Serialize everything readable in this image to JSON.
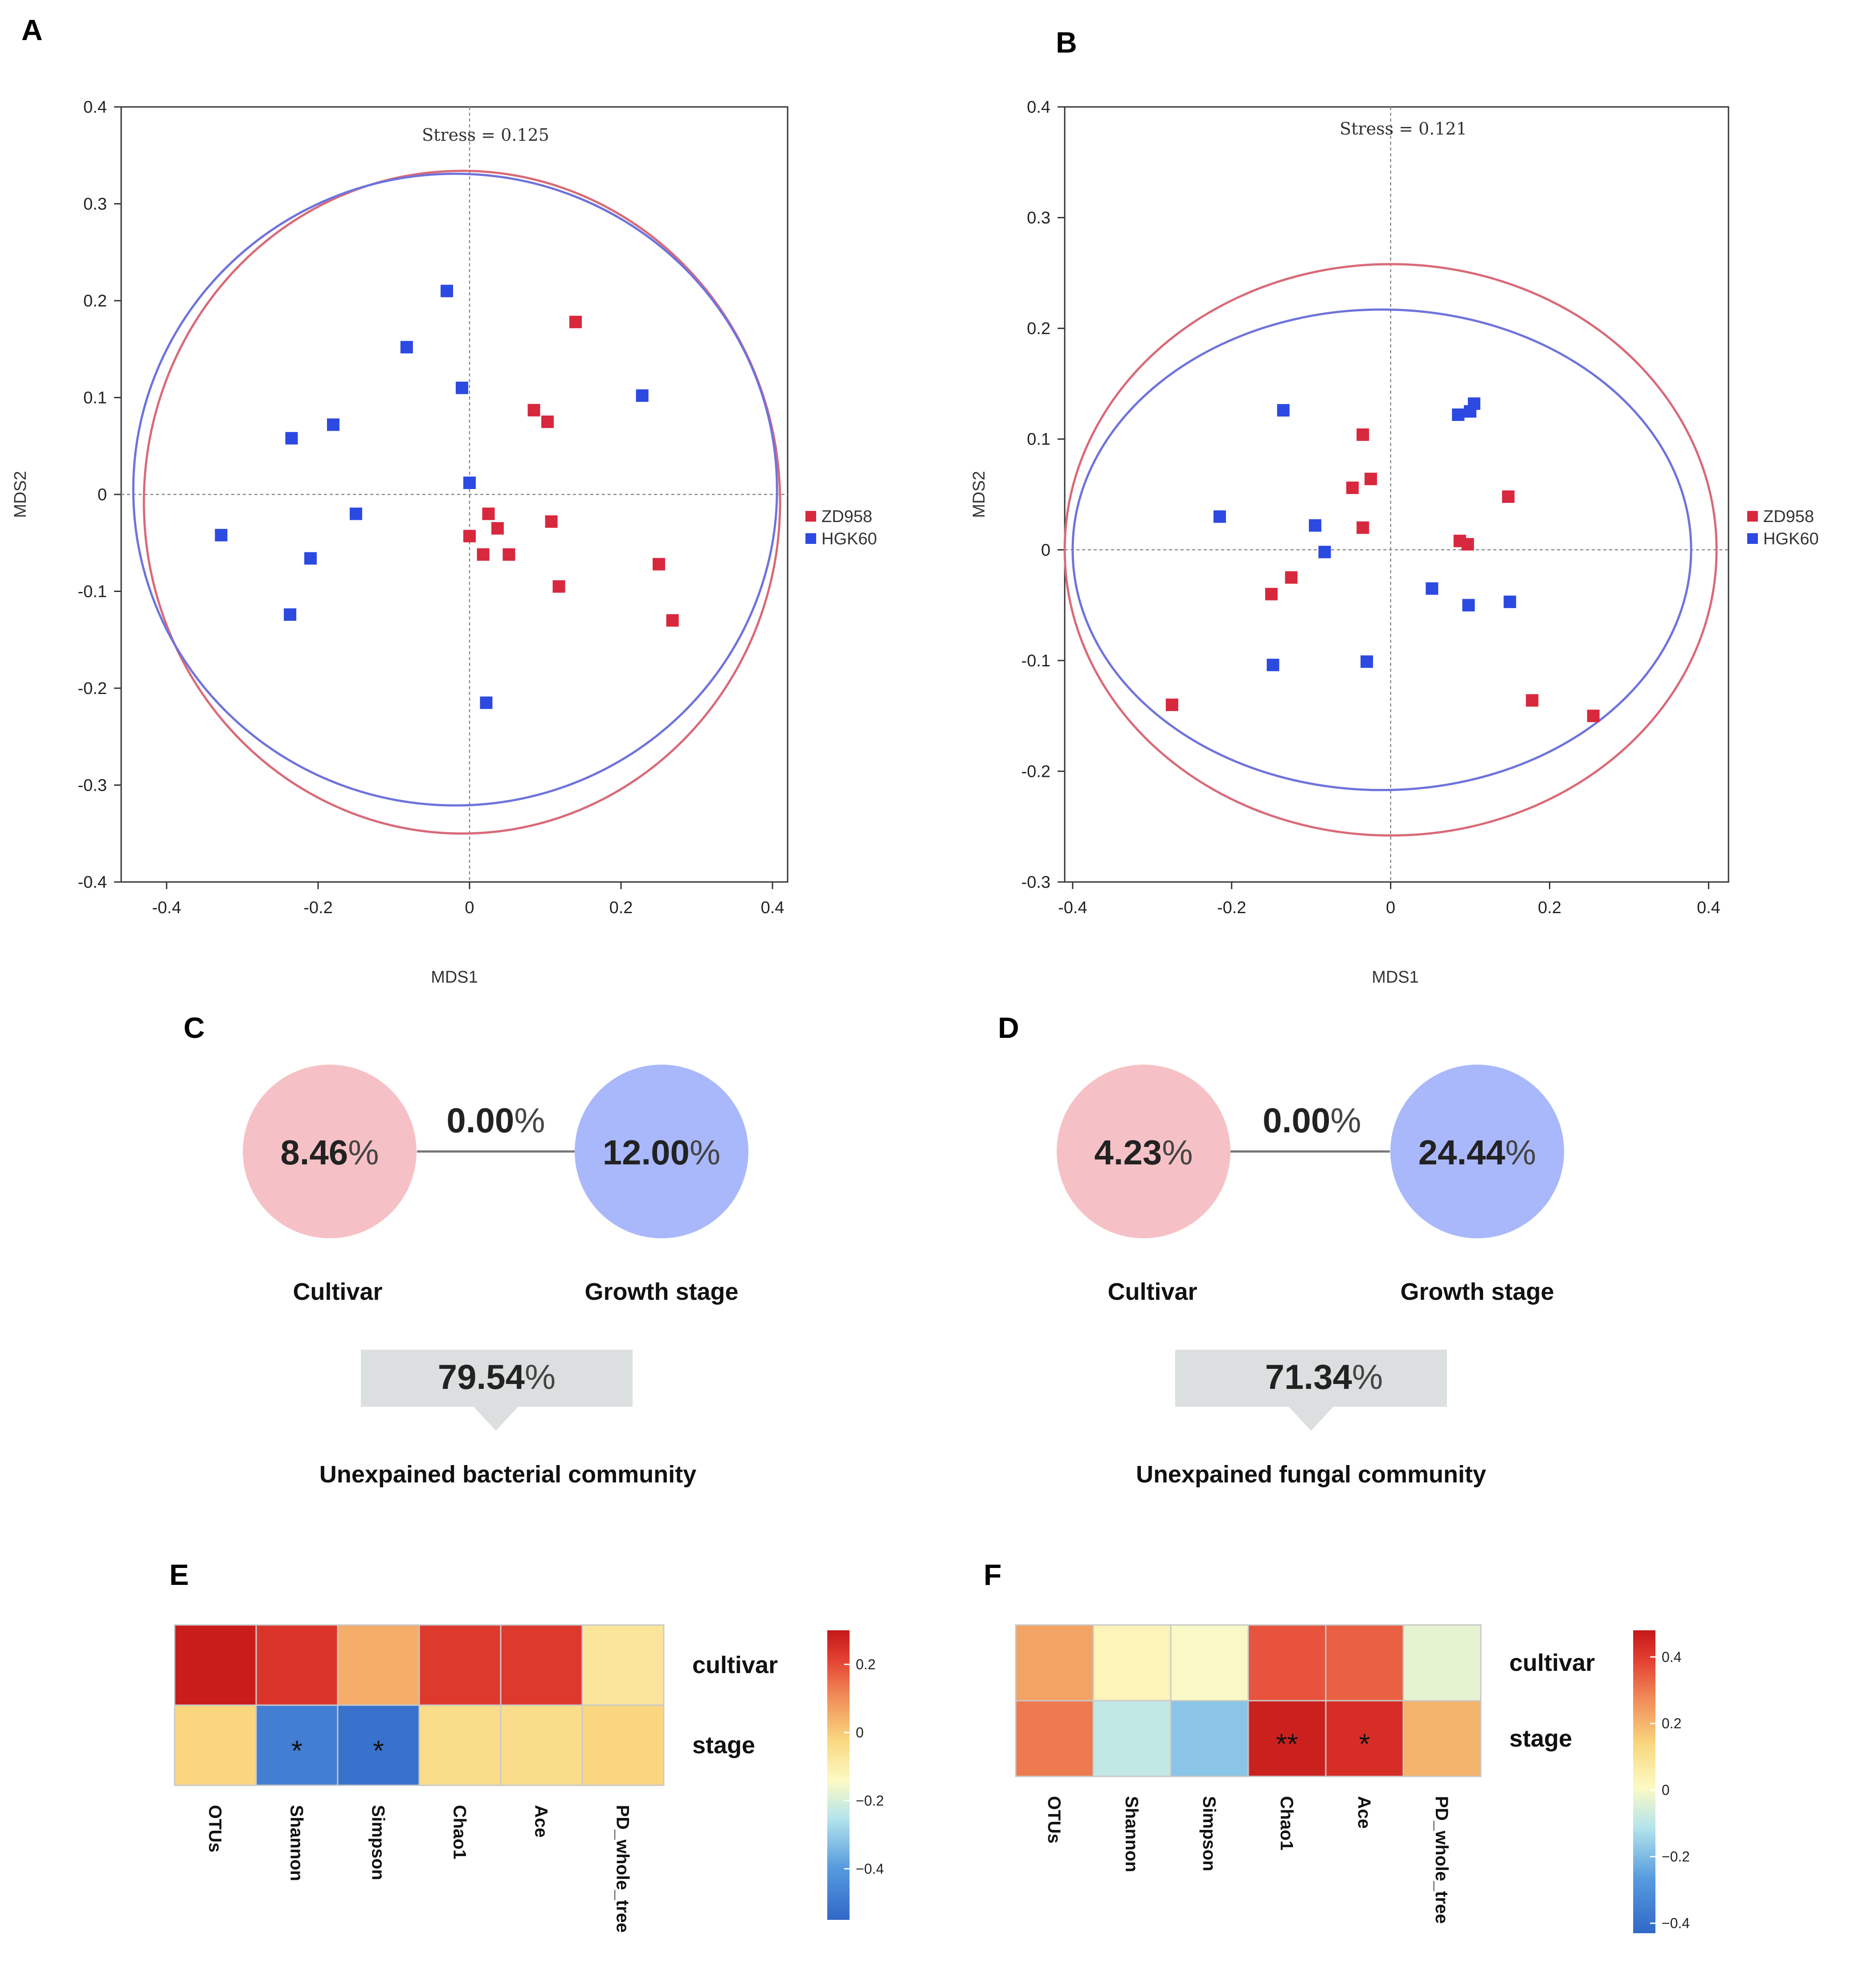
{
  "chart_data": [
    {
      "id": "A",
      "type": "scatter",
      "panel_label": "A",
      "title": "",
      "xlabel": "MDS1",
      "ylabel": "MDS2",
      "xlim": [
        -0.46,
        0.42
      ],
      "ylim": [
        -0.4,
        0.4
      ],
      "xticks": [
        -0.4,
        -0.2,
        0,
        0.2,
        0.4
      ],
      "yticks": [
        0.4,
        0.3,
        0.2,
        0.1,
        0,
        -0.1,
        -0.2,
        -0.3,
        -0.4
      ],
      "annotation": "Stress = 0.125",
      "series": [
        {
          "name": "ZD958",
          "color": "#d8283e",
          "x": [
            0.14,
            0.085,
            0.103,
            0.025,
            0.037,
            0.0,
            0.018,
            0.052,
            0.108,
            0.118,
            0.25,
            0.268
          ],
          "y": [
            0.178,
            0.087,
            0.075,
            -0.02,
            -0.035,
            -0.043,
            -0.062,
            -0.062,
            -0.028,
            -0.095,
            -0.072,
            -0.13
          ]
        },
        {
          "name": "HGK60",
          "color": "#2c49e2",
          "x": [
            -0.03,
            -0.083,
            -0.01,
            -0.18,
            -0.235,
            0.228,
            0.0,
            -0.15,
            -0.328,
            -0.21,
            -0.237,
            0.022
          ],
          "y": [
            0.21,
            0.152,
            0.11,
            0.072,
            0.058,
            0.102,
            0.012,
            -0.02,
            -0.042,
            -0.066,
            -0.124,
            -0.215
          ]
        }
      ],
      "ellipses": [
        {
          "name": "ZD958",
          "color": "#d96a78",
          "cx": -0.01,
          "cy": -0.008,
          "rx": 0.42,
          "ry": 0.342
        },
        {
          "name": "HGK60",
          "color": "#6f73dc",
          "cx": -0.019,
          "cy": 0.005,
          "rx": 0.425,
          "ry": 0.326
        }
      ]
    },
    {
      "id": "B",
      "type": "scatter",
      "panel_label": "B",
      "title": "",
      "xlabel": "MDS1",
      "ylabel": "MDS2",
      "xlim": [
        -0.41,
        0.425
      ],
      "ylim": [
        -0.3,
        0.4
      ],
      "xticks": [
        -0.4,
        -0.2,
        0,
        0.2,
        0.4
      ],
      "yticks": [
        0.4,
        0.3,
        0.2,
        0.1,
        0,
        -0.1,
        -0.2,
        -0.3
      ],
      "annotation": "Stress = 0.121",
      "series": [
        {
          "name": "ZD958",
          "color": "#d8283e",
          "x": [
            -0.035,
            -0.025,
            -0.048,
            -0.035,
            0.148,
            0.087,
            0.097,
            -0.15,
            -0.125,
            -0.275,
            0.178,
            0.255
          ],
          "y": [
            0.104,
            0.064,
            0.056,
            0.02,
            0.048,
            0.008,
            0.005,
            -0.04,
            -0.025,
            -0.14,
            -0.136,
            -0.15
          ]
        },
        {
          "name": "HGK60",
          "color": "#2c49e2",
          "x": [
            -0.135,
            0.085,
            0.1,
            0.105,
            -0.215,
            -0.095,
            -0.083,
            0.052,
            0.098,
            0.15,
            -0.148,
            -0.03
          ],
          "y": [
            0.126,
            0.122,
            0.125,
            0.132,
            0.03,
            0.022,
            -0.002,
            -0.035,
            -0.05,
            -0.047,
            -0.104,
            -0.101
          ]
        }
      ],
      "ellipses": [
        {
          "name": "ZD958",
          "color": "#d96a78",
          "cx": 0.0,
          "cy": 0.0,
          "rx": 0.41,
          "ry": 0.258
        },
        {
          "name": "HGK60",
          "color": "#6f73dc",
          "cx": -0.011,
          "cy": 0.0,
          "rx": 0.389,
          "ry": 0.217
        }
      ]
    },
    {
      "id": "E",
      "type": "heatmap",
      "panel_label": "E",
      "columns": [
        "OTUs",
        "Shannon",
        "Simpson",
        "Chao1",
        "Ace",
        "PD_whole_tree"
      ],
      "rows": [
        "cultivar",
        "stage"
      ],
      "values": [
        [
          0.29,
          0.24,
          0.05,
          0.23,
          0.23,
          -0.07
        ],
        [
          -0.02,
          -0.48,
          -0.52,
          -0.04,
          -0.04,
          -0.02
        ]
      ],
      "significance": [
        [
          "",
          "",
          "",
          "",
          "",
          ""
        ],
        [
          "",
          "*",
          "*",
          "",
          "",
          ""
        ]
      ],
      "colorbar": {
        "min": -0.55,
        "max": 0.3,
        "ticks": [
          0.2,
          0,
          -0.2,
          -0.4
        ],
        "tick_labels": [
          "0.2",
          "0",
          "−0.2",
          "−0.4"
        ]
      }
    },
    {
      "id": "F",
      "type": "heatmap",
      "panel_label": "F",
      "columns": [
        "OTUs",
        "Shannon",
        "Simpson",
        "Chao1",
        "Ace",
        "PD_whole_tree"
      ],
      "rows": [
        "cultivar",
        "stage"
      ],
      "values": [
        [
          0.23,
          0.03,
          0.0,
          0.36,
          0.34,
          -0.03
        ],
        [
          0.3,
          -0.09,
          -0.18,
          0.46,
          0.43,
          0.2
        ]
      ],
      "significance": [
        [
          "",
          "",
          "",
          "",
          "",
          ""
        ],
        [
          "",
          "",
          "",
          "**",
          "*",
          ""
        ]
      ],
      "colorbar": {
        "min": -0.43,
        "max": 0.48,
        "ticks": [
          0.4,
          0.2,
          0,
          -0.2,
          -0.4
        ],
        "tick_labels": [
          "0.4",
          "0.2",
          "0",
          "−0.2",
          "−0.4"
        ]
      }
    }
  ],
  "venn": {
    "C": {
      "label": "C",
      "left_value": "8.46",
      "shared_value": "0.00",
      "right_value": "12.00",
      "pct": "%",
      "left_label": "Cultivar",
      "right_label": "Growth stage",
      "residual_value": "79.54",
      "caption": "Unexpained bacterial community"
    },
    "D": {
      "label": "D",
      "left_value": "4.23",
      "shared_value": "0.00",
      "right_value": "24.44",
      "pct": "%",
      "left_label": "Cultivar",
      "right_label": "Growth stage",
      "residual_value": "71.34",
      "caption": "Unexpained fungal community"
    }
  },
  "colors": {
    "red": "#d8283e",
    "blue": "#2c49e2",
    "pink_circle": "#f6c1c6",
    "blue_circle": "#a9b8fb",
    "arrow_box": "#dcdfdf"
  }
}
